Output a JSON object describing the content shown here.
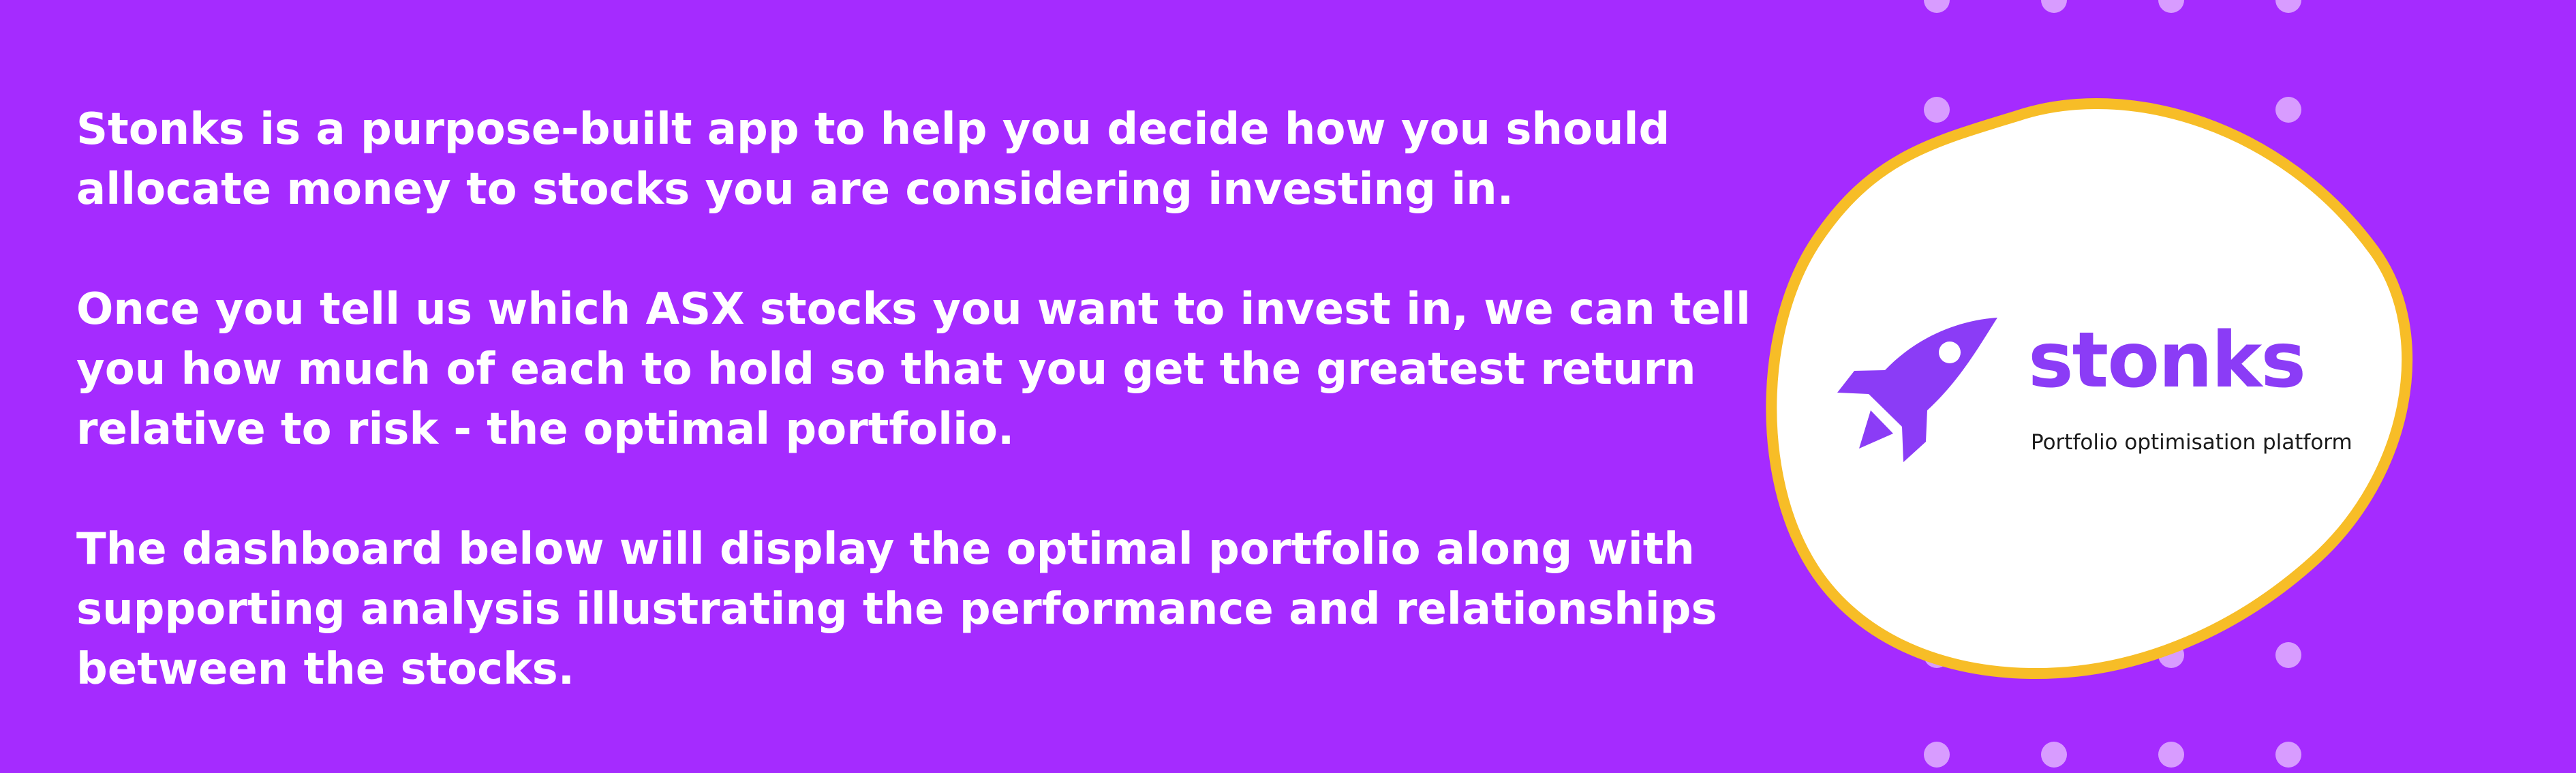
{
  "intro": {
    "paragraph_1": "Stonks is a purpose-built app to help you decide how you should allocate money to stocks you are considering investing in.",
    "paragraph_2": "Once you tell us which ASX stocks you want to invest in, we can tell you how much of each to hold so that you get the greatest return relative to risk - the optimal portfolio.",
    "paragraph_3": "The dashboard below will display the optimal portfolio along with supporting analysis illustrating the performance and relationships between the stocks."
  },
  "brand": {
    "name": "stonks",
    "tagline": "Portfolio optimisation platform",
    "logo_icon": "rocket-icon"
  },
  "colors": {
    "background": "#a52bff",
    "text": "#ffffff",
    "dots": "#d89cff",
    "blob_fill": "#ffffff",
    "blob_stroke": "#f7bd27",
    "brand": "#8b3cf6",
    "tagline": "#1a1a1a"
  }
}
